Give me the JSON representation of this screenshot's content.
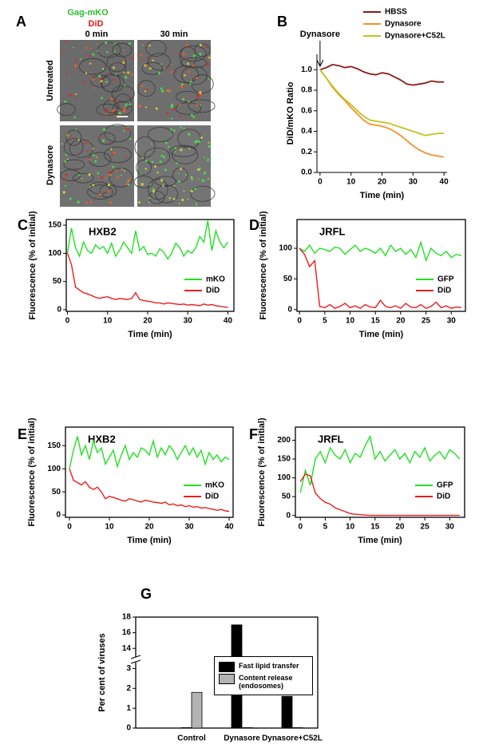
{
  "panel_a": {
    "label": "A",
    "channel_green": "Gag-mKO",
    "channel_red": "DiD",
    "columns": [
      "0 min",
      "30 min"
    ],
    "rows": [
      "Untreated",
      "Dynasore"
    ]
  },
  "chart_data": [
    {
      "type": "line",
      "label": "B",
      "frame": false,
      "legend": "top",
      "annotation": {
        "text": "Dynasore",
        "x": 0
      },
      "xlabel": "Time (min)",
      "ylabel": "DiD/mKO Ratio",
      "x": [
        0,
        2,
        4,
        6,
        8,
        10,
        12,
        14,
        16,
        18,
        20,
        22,
        24,
        26,
        28,
        30,
        32,
        34,
        36,
        38,
        40
      ],
      "series": [
        {
          "name": "HBSS",
          "color": "#8b1a1a",
          "values": [
            1.0,
            1.02,
            1.05,
            1.04,
            1.02,
            1.03,
            1.01,
            0.98,
            0.96,
            0.95,
            0.97,
            0.96,
            0.93,
            0.9,
            0.86,
            0.85,
            0.86,
            0.87,
            0.89,
            0.88,
            0.88
          ]
        },
        {
          "name": "Dynasore",
          "color": "#f5912b",
          "values": [
            1.0,
            0.92,
            0.83,
            0.76,
            0.7,
            0.63,
            0.57,
            0.51,
            0.47,
            0.46,
            0.45,
            0.43,
            0.4,
            0.36,
            0.31,
            0.26,
            0.22,
            0.19,
            0.17,
            0.16,
            0.15
          ]
        },
        {
          "name": "Dynasore+C52L",
          "color": "#c2c21c",
          "values": [
            1.0,
            0.92,
            0.84,
            0.77,
            0.71,
            0.66,
            0.6,
            0.55,
            0.51,
            0.5,
            0.49,
            0.48,
            0.46,
            0.44,
            0.42,
            0.4,
            0.38,
            0.36,
            0.37,
            0.38,
            0.38
          ]
        }
      ],
      "xlim": [
        -1,
        41
      ],
      "xticks": [
        0,
        10,
        20,
        30,
        40
      ],
      "ylim": [
        0,
        1.15
      ],
      "yticks": [
        {
          "value": 0,
          "label": "0.0"
        },
        {
          "value": 0.2,
          "label": "0.2"
        },
        {
          "value": 0.4,
          "label": "0.4"
        },
        {
          "value": 0.6,
          "label": "0.6"
        },
        {
          "value": 0.8,
          "label": "0.8"
        },
        {
          "value": 1,
          "label": "1.0"
        }
      ]
    },
    {
      "type": "line",
      "label": "C",
      "title": "HXB2",
      "frame": true,
      "legend": "lower right",
      "xlabel": "Time (min)",
      "ylabel": "Fluorescence (% of initial)",
      "x": [
        0,
        1,
        2,
        3,
        4,
        5,
        6,
        7,
        8,
        9,
        10,
        11,
        12,
        13,
        14,
        15,
        16,
        17,
        18,
        19,
        20,
        21,
        22,
        23,
        24,
        25,
        26,
        27,
        28,
        29,
        30,
        31,
        32,
        33,
        34,
        35,
        36,
        37,
        38,
        39,
        40
      ],
      "series": [
        {
          "name": "mKO",
          "color": "#22e022",
          "values": [
            100,
            145,
            110,
            95,
            120,
            105,
            100,
            115,
            108,
            112,
            100,
            118,
            95,
            105,
            120,
            110,
            100,
            140,
            105,
            112,
            98,
            100,
            95,
            108,
            102,
            90,
            100,
            118,
            110,
            95,
            105,
            100,
            110,
            130,
            120,
            158,
            105,
            140,
            120,
            110,
            120
          ]
        },
        {
          "name": "DiD",
          "color": "#ee1c1c",
          "values": [
            100,
            80,
            40,
            35,
            30,
            28,
            25,
            22,
            20,
            22,
            23,
            20,
            18,
            20,
            19,
            18,
            20,
            30,
            18,
            16,
            15,
            14,
            12,
            12,
            10,
            12,
            11,
            10,
            9,
            10,
            8,
            9,
            8,
            7,
            10,
            8,
            9,
            7,
            6,
            5,
            4
          ]
        }
      ],
      "xlim": [
        -0.3,
        41.5
      ],
      "xticks": [
        0,
        10,
        20,
        30,
        40
      ],
      "ylim": [
        -3,
        160
      ],
      "yticks": [
        0,
        50,
        100,
        150
      ]
    },
    {
      "type": "line",
      "label": "D",
      "title": "JRFL",
      "frame": true,
      "legend": "lower right",
      "xlabel": "Time (min)",
      "ylabel": "Fluorescence (% of initial)",
      "x": [
        0,
        1,
        2,
        3,
        4,
        5,
        6,
        7,
        8,
        9,
        10,
        11,
        12,
        13,
        14,
        15,
        16,
        17,
        18,
        19,
        20,
        21,
        22,
        23,
        24,
        25,
        26,
        27,
        28,
        29,
        30,
        31,
        32
      ],
      "series": [
        {
          "name": "GFP",
          "color": "#22e022",
          "values": [
            100,
            95,
            105,
            92,
            100,
            98,
            95,
            102,
            100,
            90,
            98,
            105,
            95,
            100,
            97,
            92,
            100,
            88,
            105,
            95,
            100,
            90,
            98,
            85,
            110,
            80,
            100,
            92,
            88,
            95,
            85,
            90,
            88
          ]
        },
        {
          "name": "DiD",
          "color": "#ee1c1c",
          "values": [
            100,
            90,
            70,
            80,
            5,
            3,
            8,
            2,
            5,
            10,
            3,
            6,
            2,
            8,
            4,
            3,
            15,
            5,
            3,
            6,
            2,
            10,
            4,
            3,
            8,
            2,
            5,
            12,
            3,
            6,
            2,
            4,
            3
          ]
        }
      ],
      "xlim": [
        -0.5,
        32.8
      ],
      "xticks": [
        0,
        5,
        10,
        15,
        20,
        25,
        30
      ],
      "ylim": [
        -3,
        147
      ],
      "yticks": [
        0,
        50,
        100
      ]
    },
    {
      "type": "line",
      "label": "E",
      "title": "HXB2",
      "frame": true,
      "legend": "lower right",
      "xlabel": "Time (min)",
      "ylabel": "Fluorescence (% of initial)",
      "x": [
        0,
        1,
        2,
        3,
        4,
        5,
        6,
        7,
        8,
        9,
        10,
        11,
        12,
        13,
        14,
        15,
        16,
        17,
        18,
        19,
        20,
        21,
        22,
        23,
        24,
        25,
        26,
        27,
        28,
        29,
        30,
        31,
        32,
        33,
        34,
        35,
        36,
        37,
        38,
        39,
        40
      ],
      "series": [
        {
          "name": "mKO",
          "color": "#22e022",
          "values": [
            100,
            140,
            170,
            130,
            150,
            120,
            160,
            135,
            145,
            110,
            125,
            140,
            105,
            130,
            150,
            120,
            135,
            125,
            145,
            140,
            130,
            160,
            125,
            145,
            130,
            150,
            140,
            120,
            135,
            150,
            130,
            145,
            125,
            140,
            110,
            135,
            120,
            130,
            115,
            125,
            120
          ]
        },
        {
          "name": "DiD",
          "color": "#ee1c1c",
          "values": [
            100,
            75,
            70,
            65,
            72,
            60,
            55,
            60,
            50,
            35,
            40,
            38,
            35,
            32,
            30,
            35,
            33,
            30,
            28,
            32,
            30,
            28,
            27,
            25,
            28,
            22,
            24,
            20,
            22,
            18,
            20,
            17,
            18,
            15,
            16,
            14,
            12,
            10,
            12,
            9,
            8
          ]
        }
      ],
      "xlim": [
        -1,
        41
      ],
      "xticks": [
        0,
        10,
        20,
        30,
        40
      ],
      "ylim": [
        -5,
        190
      ],
      "yticks": [
        0,
        50,
        100,
        150
      ]
    },
    {
      "type": "line",
      "label": "F",
      "title": "JRFL",
      "frame": true,
      "legend": "lower right",
      "xlabel": "Time (min)",
      "ylabel": "Fluorescence (% of initial)",
      "x": [
        0,
        1,
        2,
        3,
        4,
        5,
        6,
        7,
        8,
        9,
        10,
        11,
        12,
        13,
        14,
        15,
        16,
        17,
        18,
        19,
        20,
        21,
        22,
        23,
        24,
        25,
        26,
        27,
        28,
        29,
        30,
        31,
        32
      ],
      "series": [
        {
          "name": "GFP",
          "color": "#22e022",
          "values": [
            60,
            120,
            80,
            150,
            170,
            140,
            180,
            160,
            150,
            175,
            140,
            165,
            155,
            185,
            210,
            150,
            170,
            145,
            160,
            175,
            150,
            165,
            140,
            170,
            155,
            180,
            145,
            160,
            170,
            150,
            175,
            165,
            150
          ]
        },
        {
          "name": "DiD",
          "color": "#ee1c1c",
          "values": [
            90,
            110,
            105,
            60,
            45,
            35,
            30,
            20,
            15,
            10,
            5,
            3,
            2,
            1,
            0,
            0,
            0,
            0,
            0,
            0,
            0,
            0,
            0,
            0,
            0,
            0,
            0,
            0,
            0,
            0,
            0,
            0,
            0
          ]
        }
      ],
      "xlim": [
        -1,
        33
      ],
      "xticks": [
        0,
        5,
        10,
        15,
        20,
        25,
        30
      ],
      "ylim": [
        -5,
        235
      ],
      "yticks": [
        0,
        50,
        100,
        150,
        200
      ]
    },
    {
      "type": "bar",
      "label": "G",
      "frame": true,
      "ylabel": "Per cent of viruses",
      "categories": [
        "Control",
        "Dynasore",
        "Dynasore+C52L"
      ],
      "series": [
        {
          "name": "Fast lipid transfer",
          "color": "#000000",
          "values": [
            0.02,
            17,
            1.6
          ]
        },
        {
          "name": "Content release (endosomes)",
          "color": "#b4b4b4",
          "values": [
            1.8,
            0.02,
            0.02
          ]
        }
      ],
      "ylim": [
        0,
        18
      ],
      "ybreak": [
        3.3,
        13
      ],
      "yticks": [
        0,
        1,
        2,
        3,
        14,
        16,
        18
      ]
    }
  ]
}
